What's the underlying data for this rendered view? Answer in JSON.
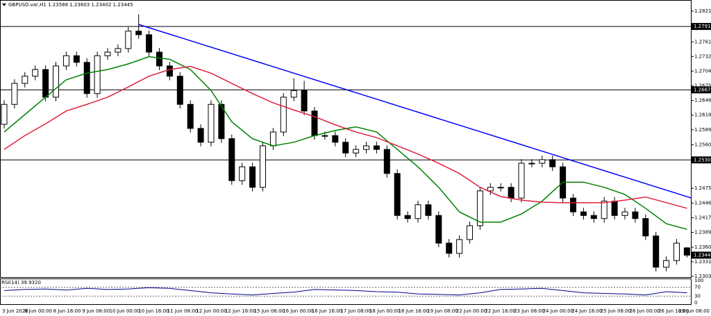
{
  "chart_data": {
    "type": "candlestick",
    "title": "GBPUSD.var,H1 1.23588 1.23603 1.23402 1.23445",
    "ylim": [
      1.2303,
      1.2836
    ],
    "yticks": [
      {
        "value": 1.2821,
        "label": "1.28210"
      },
      {
        "value": 1.2761,
        "label": "1.27610"
      },
      {
        "value": 1.27325,
        "label": "1.27325"
      },
      {
        "value": 1.2704,
        "label": "1.27040"
      },
      {
        "value": 1.2675,
        "label": "1.26750"
      },
      {
        "value": 1.26465,
        "label": "1.26465"
      },
      {
        "value": 1.2618,
        "label": "1.26180"
      },
      {
        "value": 1.25895,
        "label": "1.25895"
      },
      {
        "value": 1.256,
        "label": "1.25600"
      },
      {
        "value": 1.2475,
        "label": "1.24750"
      },
      {
        "value": 1.2446,
        "label": "1.24460"
      },
      {
        "value": 1.24175,
        "label": "1.24175"
      },
      {
        "value": 1.2389,
        "label": "1.23890"
      },
      {
        "value": 1.236,
        "label": "1.23600"
      },
      {
        "value": 1.23315,
        "label": "1.23315"
      },
      {
        "value": 1.2303,
        "label": "1.23030"
      }
    ],
    "hlines": [
      {
        "value": 1.27911,
        "label": "1.27911"
      },
      {
        "value": 1.26673,
        "label": "1.26673"
      },
      {
        "value": 1.25305,
        "label": "1.25305"
      }
    ],
    "last_price": {
      "value": 1.23445,
      "label": "1.23445"
    },
    "up_color": "#ffffff",
    "down_color": "#000000",
    "open": [
      1.26,
      1.2639,
      1.268,
      1.2694,
      1.2707,
      1.2653,
      1.2714,
      1.2734,
      1.2721,
      1.266,
      1.2734,
      1.2741,
      1.2748,
      1.2782,
      1.2775,
      1.2741,
      1.2714,
      1.2694,
      1.2639,
      1.2592,
      1.2565,
      1.2639,
      1.2572,
      1.249,
      1.2517,
      1.2477,
      1.2558,
      1.2585,
      1.2653,
      1.2666,
      1.2626,
      1.2578,
      1.2578,
      1.2565,
      1.2544,
      1.2551,
      1.2558,
      1.2551,
      1.2504,
      1.2422,
      1.2416,
      1.2443,
      1.2422,
      1.2368,
      1.2348,
      1.2375,
      1.2402,
      1.247,
      1.2477,
      1.2477,
      1.2456,
      1.2524,
      1.2524,
      1.2531,
      1.2517,
      1.2456,
      1.2429,
      1.2422,
      1.2416,
      1.245,
      1.2422,
      1.2429,
      1.2416,
      1.2382,
      1.2321,
      1.2334,
      1.23588
    ],
    "high": [
      1.2647,
      1.2688,
      1.2702,
      1.2715,
      1.2715,
      1.2722,
      1.2742,
      1.2742,
      1.2729,
      1.2742,
      1.2749,
      1.2756,
      1.279,
      1.2815,
      1.2783,
      1.2749,
      1.2722,
      1.2702,
      1.2647,
      1.26,
      1.2647,
      1.2647,
      1.258,
      1.2525,
      1.2525,
      1.2566,
      1.2593,
      1.2661,
      1.269,
      1.2685,
      1.2634,
      1.2586,
      1.2586,
      1.2573,
      1.2559,
      1.2566,
      1.2566,
      1.2559,
      1.2512,
      1.243,
      1.2451,
      1.2451,
      1.243,
      1.2376,
      1.2383,
      1.241,
      1.2478,
      1.2485,
      1.2485,
      1.2485,
      1.2532,
      1.2532,
      1.2539,
      1.2539,
      1.2525,
      1.2464,
      1.2437,
      1.243,
      1.2458,
      1.2458,
      1.2437,
      1.2437,
      1.2424,
      1.239,
      1.2342,
      1.2376,
      1.23603
    ],
    "low": [
      1.2592,
      1.2631,
      1.2672,
      1.2686,
      1.2645,
      1.2645,
      1.2706,
      1.2713,
      1.2652,
      1.2652,
      1.2726,
      1.2733,
      1.274,
      1.2767,
      1.2733,
      1.2706,
      1.2686,
      1.2631,
      1.2584,
      1.2557,
      1.2557,
      1.2564,
      1.2482,
      1.2482,
      1.2469,
      1.2469,
      1.255,
      1.2577,
      1.2645,
      1.2618,
      1.257,
      1.257,
      1.2557,
      1.2536,
      1.2536,
      1.2543,
      1.2543,
      1.2496,
      1.2414,
      1.2408,
      1.2408,
      1.2414,
      1.236,
      1.234,
      1.234,
      1.2367,
      1.2394,
      1.2462,
      1.2469,
      1.2448,
      1.2448,
      1.2516,
      1.2516,
      1.2509,
      1.2448,
      1.2421,
      1.2414,
      1.2408,
      1.2408,
      1.2414,
      1.2414,
      1.2408,
      1.2374,
      1.2313,
      1.2313,
      1.2326,
      1.23402
    ],
    "close": [
      1.2639,
      1.268,
      1.2694,
      1.2707,
      1.2653,
      1.2714,
      1.2734,
      1.2721,
      1.266,
      1.2734,
      1.2741,
      1.2748,
      1.2782,
      1.2775,
      1.2741,
      1.2714,
      1.2694,
      1.2639,
      1.2592,
      1.2565,
      1.2639,
      1.2572,
      1.249,
      1.2517,
      1.2477,
      1.2558,
      1.2585,
      1.2653,
      1.2666,
      1.2626,
      1.2578,
      1.2578,
      1.2565,
      1.2544,
      1.2551,
      1.2558,
      1.2551,
      1.2504,
      1.2422,
      1.2416,
      1.2443,
      1.2422,
      1.2368,
      1.2348,
      1.2375,
      1.2402,
      1.247,
      1.2477,
      1.2477,
      1.2456,
      1.2524,
      1.2524,
      1.2531,
      1.2517,
      1.2456,
      1.2429,
      1.2422,
      1.2416,
      1.245,
      1.2422,
      1.2429,
      1.2416,
      1.2382,
      1.2321,
      1.2334,
      1.2368,
      1.23445
    ],
    "series": [
      {
        "color": "#008000",
        "values": [
          1.2585,
          1.2619,
          1.2653,
          1.2687,
          1.27,
          1.2707,
          1.2718,
          1.2732,
          1.2727,
          1.2707,
          1.2666,
          1.2605,
          1.2572,
          1.2558,
          1.2565,
          1.2578,
          1.2588,
          1.2595,
          1.2585,
          1.2551,
          1.2517,
          1.2477,
          1.2429,
          1.2409,
          1.2409,
          1.2425,
          1.245,
          1.2487,
          1.2487,
          1.2477,
          1.2463,
          1.2436,
          1.2406,
          1.2395
        ]
      },
      {
        "color": "#e0203c",
        "values": [
          1.2551,
          1.2578,
          1.2601,
          1.2626,
          1.2639,
          1.2653,
          1.2673,
          1.2694,
          1.2707,
          1.2713,
          1.27,
          1.268,
          1.266,
          1.2642,
          1.2628,
          1.2615,
          1.2599,
          1.2585,
          1.2574,
          1.2558,
          1.2542,
          1.2524,
          1.2504,
          1.2477,
          1.2459,
          1.2452,
          1.2448,
          1.2447,
          1.2447,
          1.2447,
          1.2452,
          1.2458,
          1.2447,
          1.2436
        ]
      }
    ],
    "trendline": {
      "color": "#0000ff",
      "values": [
        1.2795,
        1.2456
      ]
    },
    "x_labels": [
      "3 Jun 2020",
      "8 Jun 00:00",
      "8 Jun 16:00",
      "9 Jun 08:00",
      "10 Jun 00:00",
      "10 Jun 16:00",
      "11 Jun 08:00",
      "12 Jun 00:00",
      "12 Jun 16:00",
      "15 Jun 08:00",
      "16 Jun 00:00",
      "16 Jun 16:00",
      "17 Jun 08:00",
      "18 Jun 00:00",
      "18 Jun 16:00",
      "19 Jun 08:00",
      "22 Jun 00:00",
      "22 Jun 16:00",
      "23 Jun 08:00",
      "24 Jun 00:00",
      "24 Jun 16:00",
      "25 Jun 08:00",
      "26 Jun 00:00",
      "26 Jun 16:00",
      "29 Jun 08:00"
    ],
    "rsi": {
      "label": "RSI(14) 39.9320",
      "color": "#00008b",
      "ylim": [
        0,
        100
      ],
      "yticks": [
        100,
        70,
        30,
        0
      ],
      "values": [
        55,
        60,
        62,
        58,
        65,
        60,
        62,
        68,
        65,
        55,
        45,
        40,
        35,
        42,
        48,
        60,
        58,
        55,
        50,
        48,
        40,
        38,
        35,
        45,
        60,
        62,
        65,
        55,
        45,
        42,
        40,
        35,
        50,
        45
      ]
    }
  }
}
